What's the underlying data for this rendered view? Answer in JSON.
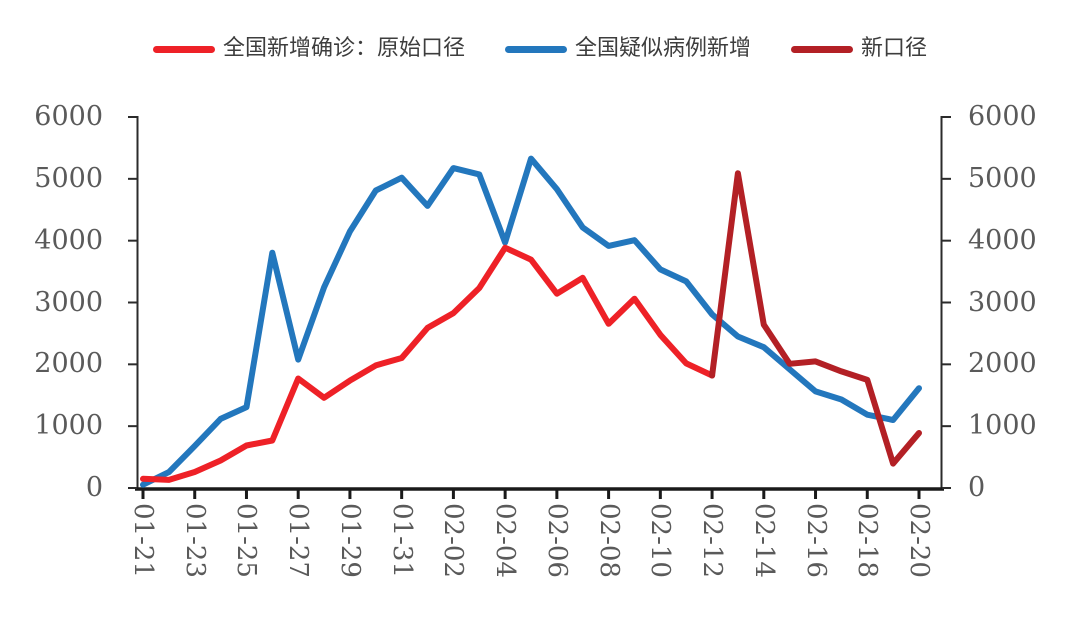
{
  "legend": {
    "items": [
      {
        "name": "confirmed-original",
        "label": "全国新增确诊：原始口径",
        "color": "#ee2127"
      },
      {
        "name": "suspected-new",
        "label": "全国疑似病例新增",
        "color": "#2377bd"
      },
      {
        "name": "new-caliber",
        "label": "新口径",
        "color": "#b32025"
      }
    ]
  },
  "axes": {
    "y_tick_labels": [
      "0",
      "1000",
      "2000",
      "3000",
      "4000",
      "5000",
      "6000"
    ],
    "x_tick_labels": [
      "01-21",
      "01-23",
      "01-25",
      "01-27",
      "01-29",
      "01-31",
      "02-02",
      "02-04",
      "02-06",
      "02-08",
      "02-10",
      "02-12",
      "02-14",
      "02-16",
      "02-18",
      "02-20"
    ],
    "label_color": "#5a5a5a",
    "axis_color": "#1a1a1a"
  },
  "chart_data": {
    "type": "line",
    "x": [
      "01-21",
      "01-22",
      "01-23",
      "01-24",
      "01-25",
      "01-26",
      "01-27",
      "01-28",
      "01-29",
      "01-30",
      "01-31",
      "02-01",
      "02-02",
      "02-03",
      "02-04",
      "02-05",
      "02-06",
      "02-07",
      "02-08",
      "02-09",
      "02-10",
      "02-11",
      "02-12",
      "02-13",
      "02-14",
      "02-15",
      "02-16",
      "02-17",
      "02-18",
      "02-19",
      "02-20"
    ],
    "x_tick_labels": [
      "01-21",
      "01-23",
      "01-25",
      "01-27",
      "01-29",
      "01-31",
      "02-02",
      "02-04",
      "02-06",
      "02-08",
      "02-10",
      "02-12",
      "02-14",
      "02-16",
      "02-18",
      "02-20"
    ],
    "ylim": [
      0,
      6000
    ],
    "y_ticks": [
      0,
      1000,
      2000,
      3000,
      4000,
      5000,
      6000
    ],
    "grid": false,
    "dual_y_axis": true,
    "legend_position": "top",
    "series": [
      {
        "name": "全国疑似病例新增",
        "color": "#2377bd",
        "start_index": 0,
        "values": [
          53,
          257,
          680,
          1118,
          1309,
          3806,
          2077,
          3248,
          4148,
          4812,
          5019,
          4562,
          5173,
          5072,
          3971,
          5328,
          4833,
          4214,
          3916,
          4008,
          3536,
          3342,
          2807,
          2450,
          2277,
          1918,
          1563,
          1432,
          1185,
          1100,
          1614
        ]
      },
      {
        "name": "全国新增确诊：原始口径",
        "color": "#ee2127",
        "start_index": 0,
        "values": [
          149,
          131,
          259,
          444,
          688,
          769,
          1771,
          1459,
          1737,
          1982,
          2102,
          2590,
          2829,
          3235,
          3887,
          3694,
          3143,
          3399,
          2656,
          3062,
          2478,
          2015,
          1820
        ]
      },
      {
        "name": "新口径",
        "color": "#b32025",
        "start_index": 22,
        "values": [
          1820,
          5090,
          2641,
          2009,
          2048,
          1886,
          1749,
          394,
          889
        ]
      }
    ]
  }
}
